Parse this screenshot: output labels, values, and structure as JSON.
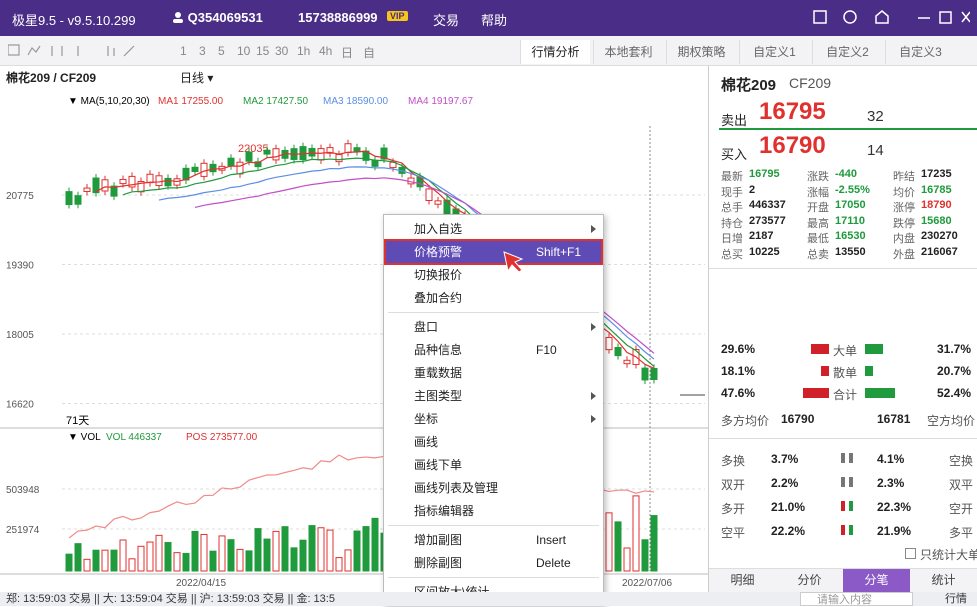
{
  "titlebar": {
    "app": "极星9.5 - v9.5.10.299",
    "user": "Q354069531",
    "phone": "15738886999",
    "vip": "VIP",
    "menu": [
      "交易",
      "帮助"
    ]
  },
  "toolbar": {
    "periods": [
      "1",
      "3",
      "5",
      "10",
      "15",
      "30",
      "1h",
      "4h",
      "日",
      "自"
    ],
    "tabs": [
      "行情分析",
      "本地套利",
      "期权策略",
      "自定义1",
      "自定义2",
      "自定义3"
    ],
    "active_tab": 0
  },
  "chart": {
    "symbol": "棉花209 / CF209",
    "period": "日线 ▾",
    "ma_label": "▼ MA(5,10,20,30)",
    "ma": [
      {
        "text": "MA1 17255.00",
        "color": "#e0312f"
      },
      {
        "text": "MA2 17427.50",
        "color": "#1f9a3c"
      },
      {
        "text": "MA3 18590.00",
        "color": "#5b8ee6"
      },
      {
        "text": "MA4 19197.67",
        "color": "#c04fc6"
      }
    ],
    "high_label": "22035",
    "price_axis": [
      "20775",
      "19390",
      "18005",
      "16620"
    ],
    "days": "71天",
    "vol_label": "▼ VOL",
    "vol": "VOL 446337",
    "pos": "POS 273577.00",
    "vol_axis": [
      "503948",
      "251974"
    ],
    "dates": [
      "2022/04/15",
      "2022/07/06"
    ]
  },
  "context_menu": {
    "highlighted": 1,
    "items": [
      {
        "label": "加入自选",
        "submenu": true
      },
      {
        "label": "价格预警",
        "shortcut": "Shift+F1"
      },
      {
        "label": "切换报价"
      },
      {
        "label": "叠加合约",
        "separator_after": true
      },
      {
        "label": "盘口",
        "submenu": true
      },
      {
        "label": "品种信息",
        "shortcut": "F10"
      },
      {
        "label": "重载数据"
      },
      {
        "label": "主图类型",
        "submenu": true
      },
      {
        "label": "坐标",
        "submenu": true
      },
      {
        "label": "画线"
      },
      {
        "label": "画线下单"
      },
      {
        "label": "画线列表及管理"
      },
      {
        "label": "指标编辑器",
        "separator_after": true
      },
      {
        "label": "增加副图",
        "shortcut": "Insert"
      },
      {
        "label": "删除副图",
        "shortcut": "Delete",
        "separator_after": true
      },
      {
        "label": "区间放大\\统计"
      }
    ]
  },
  "quote": {
    "name": "棉花209",
    "code": "CF209",
    "sell_label": "卖出",
    "sell_price": "16795",
    "sell_vol": "32",
    "buy_label": "买入",
    "buy_price": "16790",
    "buy_vol": "14",
    "stats": [
      [
        {
          "label": "最新",
          "value": "16795",
          "color": "#1f9a3c"
        },
        {
          "label": "涨跌",
          "value": "-440",
          "color": "#1f9a3c"
        },
        {
          "label": "昨结",
          "value": "17235",
          "color": "#222"
        }
      ],
      [
        {
          "label": "现手",
          "value": "2",
          "color": "#222"
        },
        {
          "label": "涨幅",
          "value": "-2.55%",
          "color": "#1f9a3c"
        },
        {
          "label": "均价",
          "value": "16785",
          "color": "#1f9a3c"
        }
      ],
      [
        {
          "label": "总手",
          "value": "446337",
          "color": "#222"
        },
        {
          "label": "开盘",
          "value": "17050",
          "color": "#1f9a3c"
        },
        {
          "label": "涨停",
          "value": "18790",
          "color": "#e0312f"
        }
      ],
      [
        {
          "label": "持仓",
          "value": "273577",
          "color": "#222"
        },
        {
          "label": "最高",
          "value": "17110",
          "color": "#1f9a3c"
        },
        {
          "label": "跌停",
          "value": "15680",
          "color": "#1f9a3c"
        }
      ],
      [
        {
          "label": "日增",
          "value": "2187",
          "color": "#222"
        },
        {
          "label": "最低",
          "value": "16530",
          "color": "#1f9a3c"
        },
        {
          "label": "内盘",
          "value": "230270",
          "color": "#222"
        }
      ],
      [
        {
          "label": "总买",
          "value": "10225",
          "color": "#222"
        },
        {
          "label": "总卖",
          "value": "13550",
          "color": "#222"
        },
        {
          "label": "外盘",
          "value": "216067",
          "color": "#222"
        }
      ]
    ],
    "flow": [
      {
        "left": "29.6%",
        "label": "大单",
        "right": "31.7%"
      },
      {
        "left": "18.1%",
        "label": "散单",
        "right": "20.7%"
      },
      {
        "left": "47.6%",
        "label": "合计",
        "right": "52.4%"
      }
    ],
    "avg": {
      "left_label": "多方均价",
      "left": "16790",
      "right": "16781",
      "right_label": "空方均价"
    },
    "positions": [
      {
        "l": "多换",
        "lv": "3.7%",
        "rv": "4.1%",
        "r": "空换"
      },
      {
        "l": "双开",
        "lv": "2.2%",
        "rv": "2.3%",
        "r": "双平"
      },
      {
        "l": "多开",
        "lv": "21.0%",
        "rv": "22.3%",
        "r": "空开"
      },
      {
        "l": "空平",
        "lv": "22.2%",
        "rv": "21.9%",
        "r": "多平"
      }
    ],
    "checkbox": "只统计大单",
    "tabs": [
      "明细",
      "分价",
      "分笔",
      "统计"
    ],
    "active_tab": 2
  },
  "status": {
    "text": "郑: 13:59:03 交易 || 大: 13:59:04 交易 || 沪: 13:59:03 交易 || 金: 13:5",
    "search": "请输入内容",
    "quote_btn": "行情"
  }
}
